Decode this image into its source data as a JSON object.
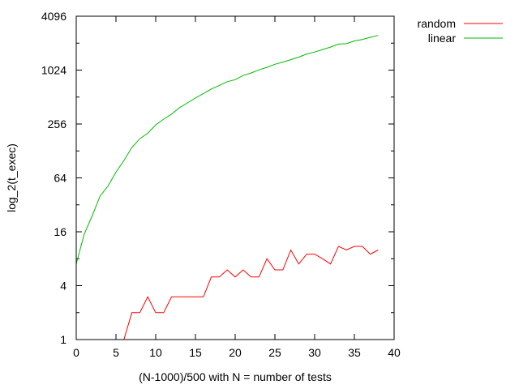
{
  "chart_data": {
    "type": "line",
    "title": "",
    "xlabel": "(N-1000)/500 with N = number of tests",
    "ylabel": "log_2(t_exec)",
    "xlim": [
      0,
      40
    ],
    "ylim": [
      1,
      4096
    ],
    "yscale": "log2",
    "grid": false,
    "legend_position": "top-right-outside",
    "x_ticks": [
      0,
      5,
      10,
      15,
      20,
      25,
      30,
      35,
      40
    ],
    "x_tick_labels": [
      "0",
      "5",
      "10",
      "15",
      "20",
      "25",
      "30",
      "35",
      "40"
    ],
    "y_ticks": [
      1,
      4,
      16,
      64,
      256,
      1024,
      4096
    ],
    "y_tick_labels": [
      "1",
      "4",
      "16",
      "64",
      "256",
      "1024",
      "4096"
    ],
    "series": [
      {
        "name": "random",
        "color": "#ff0000",
        "x": [
          6,
          7,
          8,
          9,
          10,
          11,
          12,
          13,
          14,
          15,
          16,
          17,
          18,
          19,
          20,
          21,
          22,
          23,
          24,
          25,
          26,
          27,
          28,
          29,
          30,
          31,
          32,
          33,
          34,
          35,
          36,
          37,
          38
        ],
        "values": [
          1,
          2,
          2,
          3,
          2,
          2,
          3,
          3,
          3,
          3,
          3,
          5,
          5,
          6,
          5,
          6,
          5,
          5,
          8,
          6,
          6,
          10,
          7,
          9,
          9,
          8,
          7,
          11,
          10,
          11,
          11,
          9,
          10
        ]
      },
      {
        "name": "linear",
        "color": "#00bb00",
        "x": [
          0,
          1,
          2,
          3,
          4,
          5,
          6,
          7,
          8,
          9,
          10,
          11,
          12,
          13,
          14,
          15,
          16,
          17,
          18,
          19,
          20,
          21,
          22,
          23,
          24,
          25,
          26,
          27,
          28,
          29,
          30,
          31,
          32,
          33,
          34,
          35,
          36,
          37,
          38
        ],
        "values": [
          7,
          15,
          24,
          40,
          52,
          74,
          100,
          140,
          175,
          202,
          250,
          290,
          330,
          390,
          440,
          500,
          560,
          630,
          690,
          760,
          800,
          890,
          950,
          1030,
          1100,
          1190,
          1260,
          1340,
          1430,
          1550,
          1630,
          1740,
          1850,
          2000,
          2020,
          2170,
          2250,
          2380,
          2500
        ]
      }
    ]
  }
}
